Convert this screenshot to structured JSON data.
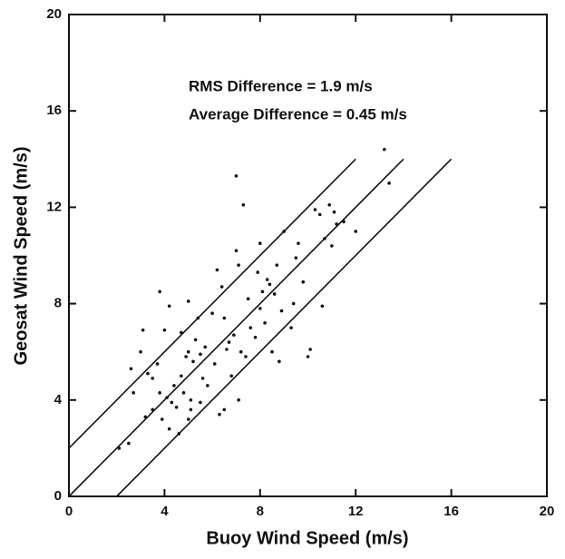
{
  "chart_data": {
    "type": "scatter",
    "xlabel": "Buoy Wind Speed (m/s)",
    "ylabel": "Geosat Wind Speed (m/s)",
    "annotations": [
      "RMS Difference = 1.9 m/s",
      "Average Difference = 0.45 m/s"
    ],
    "xlim": [
      0,
      20
    ],
    "ylim": [
      0,
      20
    ],
    "xticks": [
      0,
      4,
      8,
      12,
      16,
      20
    ],
    "yticks": [
      0,
      4,
      8,
      12,
      16,
      20
    ],
    "color": "#111111",
    "reference_lines": [
      {
        "x": [
          0,
          12
        ],
        "y": [
          2,
          14
        ]
      },
      {
        "x": [
          0,
          14
        ],
        "y": [
          0,
          14
        ]
      },
      {
        "x": [
          2,
          16
        ],
        "y": [
          0,
          14
        ]
      }
    ],
    "x": [
      2.1,
      2.5,
      2.6,
      2.7,
      3.0,
      3.1,
      3.2,
      3.3,
      3.5,
      3.5,
      3.7,
      3.8,
      3.8,
      3.9,
      4.0,
      4.1,
      4.2,
      4.2,
      4.3,
      4.4,
      4.5,
      4.6,
      4.7,
      4.7,
      4.8,
      4.9,
      5.0,
      5.0,
      5.0,
      5.1,
      5.1,
      5.2,
      5.3,
      5.4,
      5.5,
      5.5,
      5.6,
      5.7,
      5.8,
      6.0,
      6.1,
      6.2,
      6.3,
      6.4,
      6.5,
      6.5,
      6.6,
      6.7,
      6.8,
      6.9,
      7.0,
      7.0,
      7.1,
      7.1,
      7.2,
      7.3,
      7.4,
      7.5,
      7.6,
      7.8,
      7.9,
      8.0,
      8.0,
      8.1,
      8.2,
      8.3,
      8.4,
      8.5,
      8.6,
      8.7,
      8.8,
      8.9,
      9.0,
      9.3,
      9.4,
      9.5,
      9.6,
      9.8,
      10.0,
      10.1,
      10.3,
      10.5,
      10.6,
      10.7,
      10.9,
      11.0,
      11.1,
      11.2,
      11.5,
      12.0,
      13.2,
      13.4
    ],
    "values": [
      2.0,
      2.2,
      5.3,
      4.3,
      6.0,
      6.9,
      3.3,
      5.1,
      3.6,
      4.9,
      5.5,
      4.3,
      8.5,
      3.2,
      6.9,
      4.1,
      7.9,
      2.8,
      3.9,
      4.6,
      3.7,
      2.6,
      5.0,
      6.8,
      4.3,
      5.8,
      6.0,
      3.2,
      8.1,
      3.6,
      4.0,
      5.6,
      6.5,
      7.4,
      5.9,
      3.9,
      4.9,
      6.2,
      4.6,
      7.6,
      5.5,
      9.4,
      3.4,
      8.7,
      7.4,
      3.6,
      6.1,
      6.4,
      5.0,
      6.7,
      10.2,
      13.3,
      9.6,
      4.0,
      6.0,
      12.1,
      5.8,
      8.2,
      7.0,
      6.6,
      9.3,
      7.8,
      10.5,
      8.5,
      7.2,
      9.0,
      8.8,
      6.0,
      8.4,
      9.6,
      5.6,
      7.7,
      11.0,
      7.0,
      8.0,
      9.9,
      10.5,
      8.9,
      5.8,
      6.1,
      11.9,
      11.7,
      7.9,
      10.7,
      12.1,
      10.4,
      11.8,
      11.3,
      11.4,
      11.0,
      14.4,
      13.0
    ]
  }
}
